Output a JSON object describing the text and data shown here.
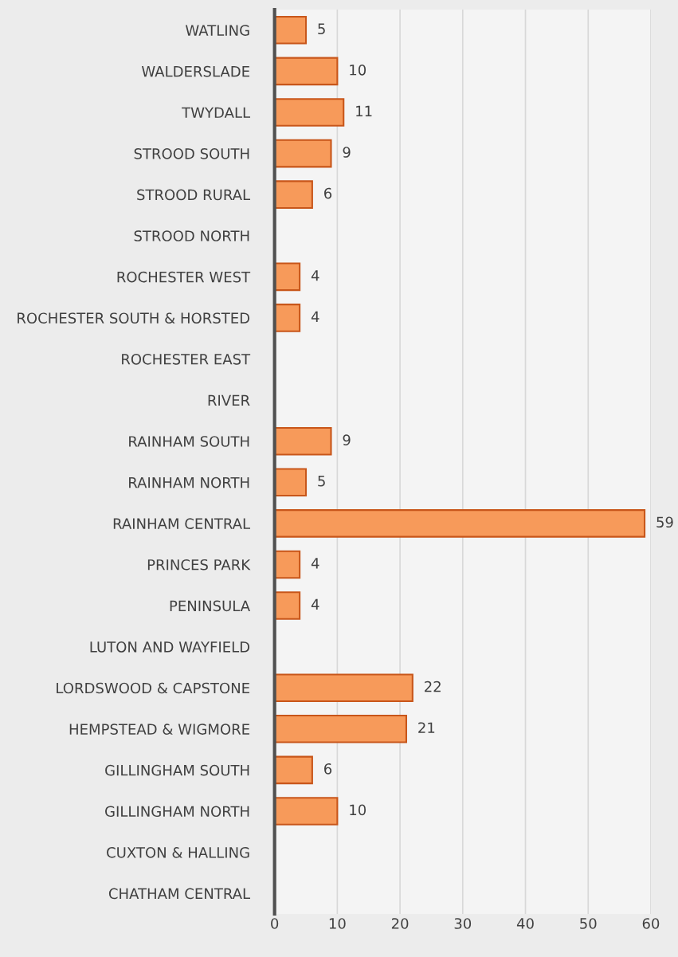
{
  "chart_data": {
    "type": "bar",
    "orientation": "horizontal",
    "categories": [
      "WATLING",
      "WALDERSLADE",
      "TWYDALL",
      "STROOD SOUTH",
      "STROOD RURAL",
      "STROOD NORTH",
      "ROCHESTER WEST",
      "ROCHESTER SOUTH & HORSTED",
      "ROCHESTER EAST",
      "RIVER",
      "RAINHAM SOUTH",
      "RAINHAM NORTH",
      "RAINHAM CENTRAL",
      "PRINCES PARK",
      "PENINSULA",
      "LUTON AND WAYFIELD",
      "LORDSWOOD & CAPSTONE",
      "HEMPSTEAD & WIGMORE",
      "GILLINGHAM SOUTH",
      "GILLINGHAM NORTH",
      "CUXTON & HALLING",
      "CHATHAM CENTRAL"
    ],
    "values": [
      5,
      10,
      11,
      9,
      6,
      null,
      4,
      4,
      null,
      null,
      9,
      5,
      59,
      4,
      4,
      null,
      22,
      21,
      6,
      10,
      null,
      null
    ],
    "color": "#f79a5a",
    "xlim": [
      0,
      60
    ],
    "xticks": [
      0,
      10,
      20,
      30,
      40,
      50,
      60
    ],
    "grid": "x",
    "data_labels": true,
    "legend": false
  }
}
